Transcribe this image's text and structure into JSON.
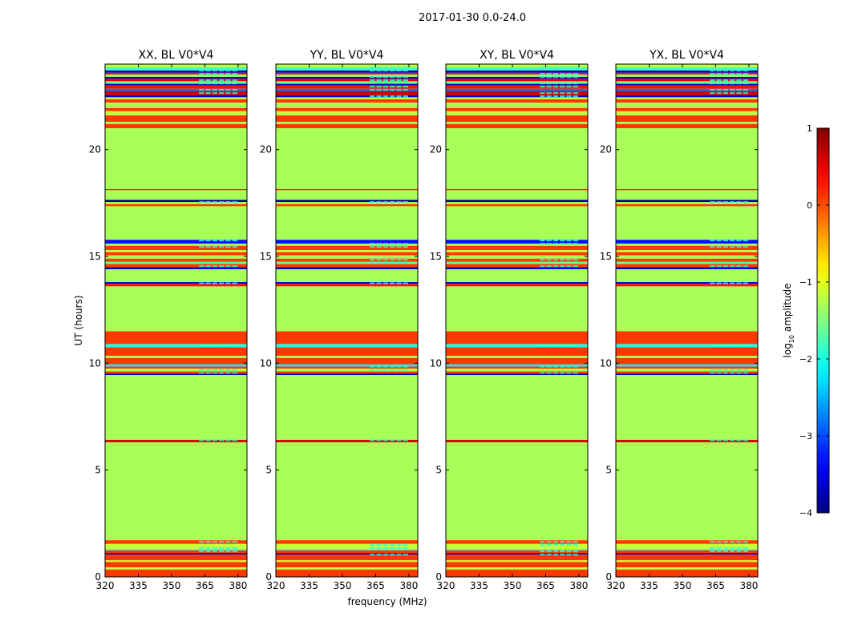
{
  "chart_data": {
    "type": "heatmap",
    "suptitle": "2017-01-30 0.0-24.0",
    "xlabel": "frequency (MHz)",
    "ylabel": "UT (hours)",
    "xlim": [
      320,
      384
    ],
    "ylim": [
      0,
      24
    ],
    "xticks": [
      320,
      335,
      350,
      365,
      380
    ],
    "yticks": [
      0,
      5,
      10,
      15,
      20
    ],
    "panels": [
      {
        "title": "XX, BL V0*V4"
      },
      {
        "title": "YY, BL V0*V4"
      },
      {
        "title": "XY, BL V0*V4"
      },
      {
        "title": "YX, BL V0*V4"
      }
    ],
    "colorbar": {
      "label": "log10 amplitude",
      "label_base": "log",
      "label_sub": "10",
      "label_rest": " amplitude",
      "range": [
        -4,
        1
      ],
      "ticks": [
        -4,
        -3,
        -2,
        -1,
        0,
        1
      ],
      "tick_labels": [
        "−4",
        "−3",
        "−2",
        "−1",
        "0",
        "1"
      ],
      "colormap": "jet"
    },
    "bands": [
      {
        "t0": 0.0,
        "t1": 0.35,
        "value": 0.1
      },
      {
        "t0": 0.35,
        "t1": 0.45,
        "value": -1.2
      },
      {
        "t0": 0.45,
        "t1": 0.7,
        "value": 0.1
      },
      {
        "t0": 0.7,
        "t1": 0.78,
        "value": -1.1
      },
      {
        "t0": 0.78,
        "t1": 1.05,
        "value": 0.1
      },
      {
        "t0": 1.05,
        "t1": 1.12,
        "value": -3.6
      },
      {
        "t0": 1.12,
        "t1": 1.25,
        "value": 0.1
      },
      {
        "t0": 1.25,
        "t1": 1.3,
        "value": -1.9
      },
      {
        "t0": 1.3,
        "t1": 1.55,
        "value": -1.15
      },
      {
        "t0": 1.55,
        "t1": 1.72,
        "value": 0.1
      },
      {
        "t0": 1.72,
        "t1": 6.3,
        "value": -1.3
      },
      {
        "t0": 6.3,
        "t1": 6.42,
        "value": 0.5
      },
      {
        "t0": 6.42,
        "t1": 9.45,
        "value": -1.3
      },
      {
        "t0": 9.45,
        "t1": 9.52,
        "value": -3.7
      },
      {
        "t0": 9.52,
        "t1": 9.62,
        "value": 0.1
      },
      {
        "t0": 9.62,
        "t1": 9.75,
        "value": -1.3
      },
      {
        "t0": 9.75,
        "t1": 9.85,
        "value": 0.1
      },
      {
        "t0": 9.85,
        "t1": 9.95,
        "value": -2.2
      },
      {
        "t0": 9.95,
        "t1": 10.25,
        "value": 0.1
      },
      {
        "t0": 10.25,
        "t1": 10.35,
        "value": -1.3
      },
      {
        "t0": 10.35,
        "t1": 10.75,
        "value": 0.1
      },
      {
        "t0": 10.75,
        "t1": 10.9,
        "value": -2.0
      },
      {
        "t0": 10.9,
        "t1": 11.5,
        "value": 0.1
      },
      {
        "t0": 11.5,
        "t1": 13.6,
        "value": -1.3
      },
      {
        "t0": 13.6,
        "t1": 13.72,
        "value": 0.3
      },
      {
        "t0": 13.72,
        "t1": 13.8,
        "value": -3.5
      },
      {
        "t0": 13.8,
        "t1": 14.4,
        "value": -1.3
      },
      {
        "t0": 14.4,
        "t1": 14.5,
        "value": -3.6
      },
      {
        "t0": 14.5,
        "t1": 14.65,
        "value": 0.1
      },
      {
        "t0": 14.65,
        "t1": 14.75,
        "value": -1.6
      },
      {
        "t0": 14.75,
        "t1": 14.9,
        "value": 0.1
      },
      {
        "t0": 14.9,
        "t1": 15.05,
        "value": -1.3
      },
      {
        "t0": 15.05,
        "t1": 15.2,
        "value": 0.1
      },
      {
        "t0": 15.2,
        "t1": 15.3,
        "value": -1.2
      },
      {
        "t0": 15.3,
        "t1": 15.5,
        "value": 0.1
      },
      {
        "t0": 15.5,
        "t1": 15.6,
        "value": -1.3
      },
      {
        "t0": 15.6,
        "t1": 15.78,
        "value": -3.3
      },
      {
        "t0": 15.78,
        "t1": 17.35,
        "value": -1.3
      },
      {
        "t0": 17.35,
        "t1": 17.45,
        "value": 0.1
      },
      {
        "t0": 17.45,
        "t1": 17.55,
        "value": -1.3
      },
      {
        "t0": 17.55,
        "t1": 17.65,
        "value": -3.9
      },
      {
        "t0": 17.65,
        "t1": 18.1,
        "value": -1.3
      },
      {
        "t0": 18.1,
        "t1": 18.16,
        "value": 0.2
      },
      {
        "t0": 18.16,
        "t1": 21.0,
        "value": -1.3
      },
      {
        "t0": 21.0,
        "t1": 21.2,
        "value": 0.1
      },
      {
        "t0": 21.2,
        "t1": 21.3,
        "value": -1.3
      },
      {
        "t0": 21.3,
        "t1": 21.6,
        "value": 0.1
      },
      {
        "t0": 21.6,
        "t1": 21.8,
        "value": -1.2
      },
      {
        "t0": 21.8,
        "t1": 21.95,
        "value": 0.1
      },
      {
        "t0": 21.95,
        "t1": 22.2,
        "value": -1.3
      },
      {
        "t0": 22.2,
        "t1": 22.35,
        "value": 0.1
      },
      {
        "t0": 22.35,
        "t1": 22.45,
        "value": -1.2
      },
      {
        "t0": 22.45,
        "t1": 22.55,
        "value": -3.6
      },
      {
        "t0": 22.55,
        "t1": 22.75,
        "value": 0.6
      },
      {
        "t0": 22.75,
        "t1": 22.85,
        "value": -2.8
      },
      {
        "t0": 22.85,
        "t1": 23.0,
        "value": 0.3
      },
      {
        "t0": 23.0,
        "t1": 23.08,
        "value": -3.6
      },
      {
        "t0": 23.08,
        "t1": 23.2,
        "value": -1.6
      },
      {
        "t0": 23.2,
        "t1": 23.32,
        "value": 0.5
      },
      {
        "t0": 23.32,
        "t1": 23.4,
        "value": -3.5
      },
      {
        "t0": 23.4,
        "t1": 23.52,
        "value": -1.5
      },
      {
        "t0": 23.52,
        "t1": 23.6,
        "value": 0.4
      },
      {
        "t0": 23.6,
        "t1": 23.7,
        "value": -3.6
      },
      {
        "t0": 23.7,
        "t1": 23.85,
        "value": -1.8
      },
      {
        "t0": 23.85,
        "t1": 24.0,
        "value": -1.2
      }
    ],
    "speckle": {
      "freq_range": [
        362,
        380
      ],
      "value": -1.9,
      "time_ranges": [
        [
          22.4,
          23.9
        ],
        [
          17.45,
          17.6
        ],
        [
          15.3,
          15.8
        ],
        [
          14.4,
          14.9
        ],
        [
          13.6,
          13.8
        ],
        [
          10.7,
          10.9
        ],
        [
          9.4,
          9.9
        ],
        [
          6.35,
          6.45
        ],
        [
          1.0,
          1.7
        ]
      ]
    }
  }
}
